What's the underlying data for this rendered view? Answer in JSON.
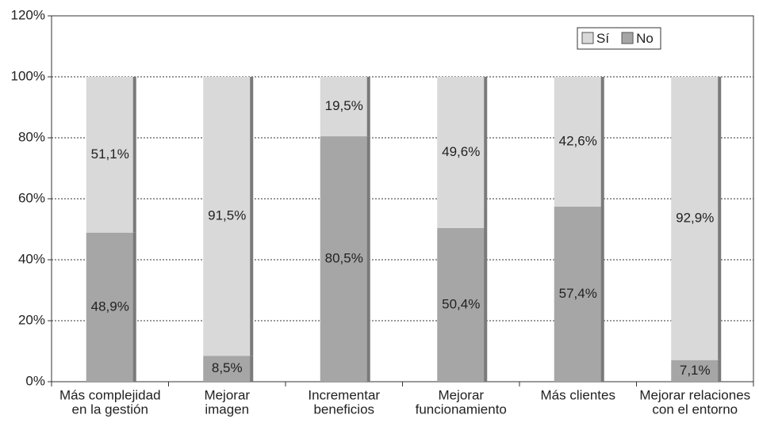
{
  "chart_data": {
    "type": "stacked_bar",
    "categories": [
      [
        "Más complejidad",
        "en la gestión"
      ],
      [
        "Mejorar",
        "imagen"
      ],
      [
        "Incrementar",
        "beneficios"
      ],
      [
        "Mejorar",
        "funcionamiento"
      ],
      [
        "Más clientes"
      ],
      [
        "Mejorar relaciones",
        "con el entorno"
      ]
    ],
    "series": [
      {
        "name": "Sí",
        "color": "#d9d9d9",
        "values": [
          51.1,
          91.5,
          19.5,
          49.6,
          42.6,
          92.9
        ],
        "value_labels": [
          "51,1%",
          "91,5%",
          "19,5%",
          "49,6%",
          "42,6%",
          "92,9%"
        ]
      },
      {
        "name": "No",
        "color": "#a6a6a6",
        "values": [
          48.9,
          8.5,
          80.5,
          50.4,
          57.4,
          7.1
        ],
        "value_labels": [
          "48,9%",
          "8,5%",
          "80,5%",
          "50,4%",
          "57,4%",
          "7,1%"
        ]
      }
    ],
    "ylim": [
      0,
      120
    ],
    "yticks": [
      {
        "value": 0,
        "label": "0%"
      },
      {
        "value": 20,
        "label": "20%"
      },
      {
        "value": 40,
        "label": "40%"
      },
      {
        "value": 60,
        "label": "60%"
      },
      {
        "value": 80,
        "label": "80%"
      },
      {
        "value": 100,
        "label": "100%"
      },
      {
        "value": 120,
        "label": "120%"
      }
    ],
    "grid": true,
    "legend": "upper right"
  }
}
